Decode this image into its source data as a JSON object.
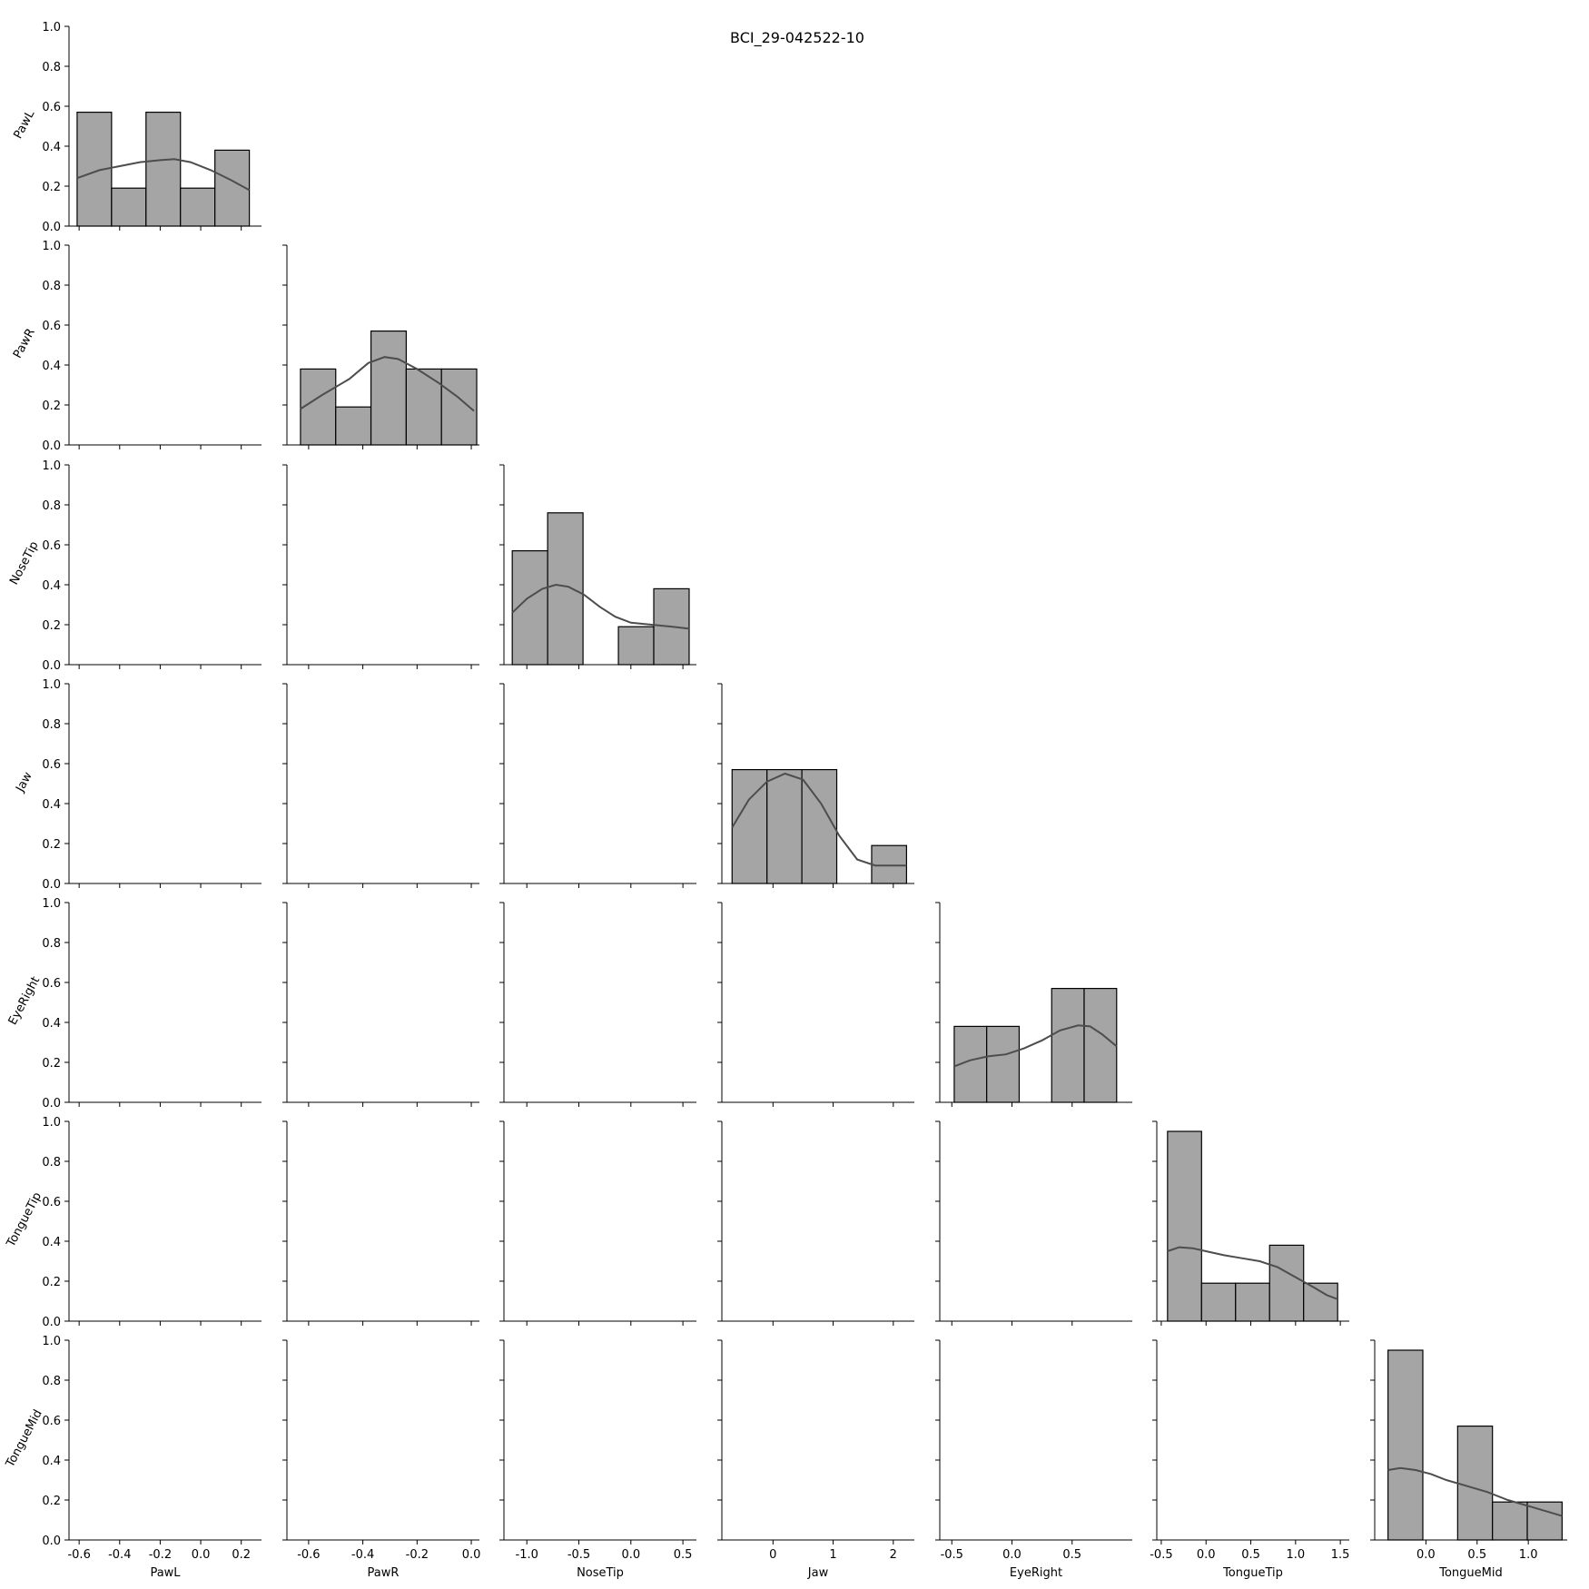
{
  "chart_data": {
    "type": "pairgrid-histogram",
    "title": "BCI_29-042522-10",
    "y_tick_labels": [
      "0.0",
      "0.2",
      "0.4",
      "0.6",
      "0.8",
      "1.0"
    ],
    "ylim": [
      0,
      1
    ],
    "grid": false,
    "colors": {
      "bar_fill": "#a5a5a5",
      "bar_edge": "#000000",
      "kde_line": "#4d4d4d",
      "axis": "#000000"
    },
    "variables": [
      {
        "name": "PawL",
        "xlim": [
          -0.65,
          0.3
        ],
        "x_ticks": [
          -0.6,
          -0.4,
          -0.2,
          0.0,
          0.2
        ],
        "x_tick_labels": [
          "-0.6",
          "-0.4",
          "-0.2",
          "0.0",
          "0.2"
        ],
        "bin_edges": [
          -0.61,
          -0.44,
          -0.27,
          -0.1,
          0.07,
          0.24
        ],
        "values": [
          0.57,
          0.19,
          0.57,
          0.19,
          0.38
        ],
        "kde": [
          [
            -0.61,
            0.24
          ],
          [
            -0.5,
            0.28
          ],
          [
            -0.4,
            0.3
          ],
          [
            -0.3,
            0.32
          ],
          [
            -0.2,
            0.33
          ],
          [
            -0.13,
            0.335
          ],
          [
            -0.05,
            0.32
          ],
          [
            0.05,
            0.28
          ],
          [
            0.15,
            0.23
          ],
          [
            0.24,
            0.18
          ]
        ]
      },
      {
        "name": "PawR",
        "xlim": [
          -0.68,
          0.03
        ],
        "x_ticks": [
          -0.6,
          -0.4,
          -0.2,
          0.0
        ],
        "x_tick_labels": [
          "-0.6",
          "-0.4",
          "-0.2",
          "0.0"
        ],
        "bin_edges": [
          -0.63,
          -0.5,
          -0.37,
          -0.24,
          -0.11,
          0.02
        ],
        "values": [
          0.38,
          0.19,
          0.57,
          0.38,
          0.38
        ],
        "kde": [
          [
            -0.63,
            0.18
          ],
          [
            -0.55,
            0.25
          ],
          [
            -0.45,
            0.33
          ],
          [
            -0.38,
            0.41
          ],
          [
            -0.32,
            0.44
          ],
          [
            -0.27,
            0.43
          ],
          [
            -0.2,
            0.38
          ],
          [
            -0.12,
            0.31
          ],
          [
            -0.05,
            0.24
          ],
          [
            0.01,
            0.17
          ]
        ]
      },
      {
        "name": "NoseTip",
        "xlim": [
          -1.22,
          0.63
        ],
        "x_ticks": [
          -1.0,
          -0.5,
          0.0,
          0.5
        ],
        "x_tick_labels": [
          "-1.0",
          "-0.5",
          "0.0",
          "0.5"
        ],
        "bin_edges": [
          -1.14,
          -0.8,
          -0.46,
          -0.12,
          0.22,
          0.56
        ],
        "values": [
          0.57,
          0.76,
          0.0,
          0.19,
          0.38
        ],
        "kde": [
          [
            -1.14,
            0.26
          ],
          [
            -1.0,
            0.33
          ],
          [
            -0.85,
            0.38
          ],
          [
            -0.72,
            0.4
          ],
          [
            -0.6,
            0.39
          ],
          [
            -0.45,
            0.35
          ],
          [
            -0.3,
            0.29
          ],
          [
            -0.15,
            0.24
          ],
          [
            0.0,
            0.21
          ],
          [
            0.2,
            0.2
          ],
          [
            0.4,
            0.19
          ],
          [
            0.56,
            0.18
          ]
        ]
      },
      {
        "name": "Jaw",
        "xlim": [
          -0.85,
          2.35
        ],
        "x_ticks": [
          0,
          1,
          2
        ],
        "x_tick_labels": [
          "0",
          "1",
          "2"
        ],
        "bin_edges": [
          -0.68,
          -0.1,
          0.48,
          1.06,
          1.64,
          2.22
        ],
        "values": [
          0.57,
          0.57,
          0.57,
          0.0,
          0.19
        ],
        "kde": [
          [
            -0.68,
            0.28
          ],
          [
            -0.4,
            0.42
          ],
          [
            -0.1,
            0.51
          ],
          [
            0.2,
            0.55
          ],
          [
            0.5,
            0.52
          ],
          [
            0.8,
            0.4
          ],
          [
            1.1,
            0.24
          ],
          [
            1.4,
            0.12
          ],
          [
            1.7,
            0.09
          ],
          [
            2.0,
            0.09
          ],
          [
            2.22,
            0.09
          ]
        ]
      },
      {
        "name": "EyeRight",
        "xlim": [
          -0.6,
          1.0
        ],
        "x_ticks": [
          -0.5,
          0.0,
          0.5
        ],
        "x_tick_labels": [
          "-0.5",
          "0.0",
          "0.5"
        ],
        "bin_edges": [
          -0.48,
          -0.21,
          0.06,
          0.33,
          0.6,
          0.87
        ],
        "values": [
          0.38,
          0.38,
          0.0,
          0.57,
          0.57
        ],
        "kde": [
          [
            -0.48,
            0.18
          ],
          [
            -0.35,
            0.21
          ],
          [
            -0.2,
            0.23
          ],
          [
            -0.05,
            0.24
          ],
          [
            0.1,
            0.27
          ],
          [
            0.25,
            0.31
          ],
          [
            0.4,
            0.36
          ],
          [
            0.55,
            0.385
          ],
          [
            0.65,
            0.38
          ],
          [
            0.75,
            0.34
          ],
          [
            0.87,
            0.28
          ]
        ]
      },
      {
        "name": "TongueTip",
        "xlim": [
          -0.55,
          1.6
        ],
        "x_ticks": [
          -0.5,
          0.0,
          0.5,
          1.0,
          1.5
        ],
        "x_tick_labels": [
          "-0.5",
          "0.0",
          "0.5",
          "1.0",
          "1.5"
        ],
        "bin_edges": [
          -0.43,
          -0.05,
          0.33,
          0.71,
          1.09,
          1.47
        ],
        "values": [
          0.95,
          0.19,
          0.19,
          0.38,
          0.19
        ],
        "kde": [
          [
            -0.43,
            0.35
          ],
          [
            -0.3,
            0.37
          ],
          [
            -0.15,
            0.365
          ],
          [
            0.0,
            0.35
          ],
          [
            0.2,
            0.33
          ],
          [
            0.4,
            0.315
          ],
          [
            0.6,
            0.3
          ],
          [
            0.8,
            0.27
          ],
          [
            1.0,
            0.22
          ],
          [
            1.2,
            0.17
          ],
          [
            1.35,
            0.13
          ],
          [
            1.47,
            0.11
          ]
        ]
      },
      {
        "name": "TongueMid",
        "xlim": [
          -0.5,
          1.38
        ],
        "x_ticks": [
          0.0,
          0.5,
          1.0
        ],
        "x_tick_labels": [
          "0.0",
          "0.5",
          "1.0"
        ],
        "bin_edges": [
          -0.37,
          -0.03,
          0.31,
          0.65,
          0.99,
          1.33
        ],
        "values": [
          0.95,
          0.0,
          0.57,
          0.19,
          0.19
        ],
        "kde": [
          [
            -0.37,
            0.35
          ],
          [
            -0.25,
            0.36
          ],
          [
            -0.1,
            0.35
          ],
          [
            0.05,
            0.33
          ],
          [
            0.2,
            0.3
          ],
          [
            0.4,
            0.27
          ],
          [
            0.6,
            0.24
          ],
          [
            0.8,
            0.2
          ],
          [
            1.0,
            0.17
          ],
          [
            1.2,
            0.14
          ],
          [
            1.33,
            0.12
          ]
        ]
      }
    ]
  }
}
